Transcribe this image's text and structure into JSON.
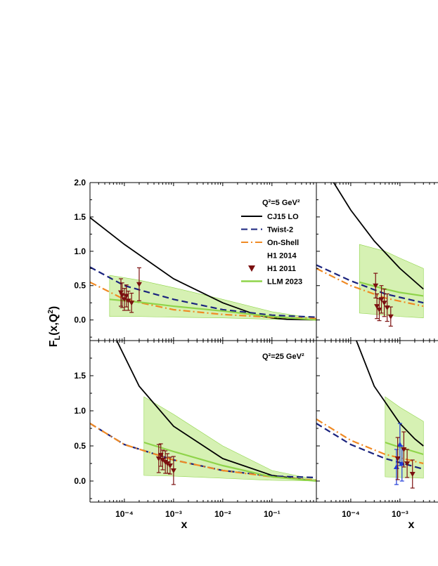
{
  "figure": {
    "ylabel_main": "F",
    "ylabel_sub": "L",
    "ylabel_args_pre": "(x,Q",
    "ylabel_args_sup": "2",
    "ylabel_args_post": ")",
    "xlabel": "x"
  },
  "chart_data": [
    {
      "type": "line",
      "panel": "top-left",
      "q2_label": "Q²=5 GeV²",
      "x_scale": "log",
      "xlim": [
        2e-05,
        0.8
      ],
      "ylim": [
        -0.3,
        2.0
      ],
      "yticks": [
        "2.0",
        "1.5",
        "1.0",
        "0.5",
        "0.0"
      ],
      "xticks": [],
      "legend": {
        "placement": "top-right",
        "entries": [
          "CJ15 LO",
          "Twist-2",
          "On-Shell",
          "H1 2014",
          "H1 2011",
          "LLM 2023"
        ]
      },
      "series": [
        {
          "name": "CJ15 LO",
          "style": "solid",
          "color": "#000000",
          "x": [
            2e-05,
            0.0001,
            0.001,
            0.01,
            0.05,
            0.1,
            0.2,
            0.8
          ],
          "y": [
            1.49,
            1.1,
            0.6,
            0.25,
            0.07,
            0.03,
            0.01,
            0.0
          ]
        },
        {
          "name": "Twist-2",
          "style": "dash",
          "color": "#1a237e",
          "x": [
            2e-05,
            0.0001,
            0.001,
            0.01,
            0.1,
            0.8
          ],
          "y": [
            0.77,
            0.5,
            0.3,
            0.15,
            0.07,
            0.04
          ]
        },
        {
          "name": "On-Shell",
          "style": "dashdot",
          "color": "#f08a24",
          "x": [
            2e-05,
            0.0001,
            0.001,
            0.01,
            0.1,
            0.8
          ],
          "y": [
            0.55,
            0.3,
            0.15,
            0.08,
            0.04,
            0.02
          ]
        },
        {
          "name": "LLM 2023",
          "style": "solid",
          "color": "#8fd44a",
          "x": [
            5e-05,
            0.0002,
            0.001,
            0.01,
            0.1,
            0.8
          ],
          "y": [
            0.3,
            0.26,
            0.2,
            0.13,
            0.05,
            0.0
          ]
        },
        {
          "name": "LLM 2023 band",
          "style": "band",
          "color": "#c8ec9a",
          "x": [
            5e-05,
            0.0002,
            0.001,
            0.01,
            0.1,
            0.8
          ],
          "y_low": [
            0.05,
            0.05,
            0.04,
            0.03,
            0.01,
            0.0
          ],
          "y_high": [
            0.65,
            0.58,
            0.47,
            0.3,
            0.12,
            0.02
          ]
        },
        {
          "name": "H1 2011",
          "style": "points",
          "color": "#7b1010",
          "x": [
            8.5e-05,
            9e-05,
            0.0001,
            0.00011,
            0.00012,
            0.00014,
            0.0002
          ],
          "y": [
            0.4,
            0.36,
            0.3,
            0.35,
            0.28,
            0.25,
            0.52
          ],
          "err": [
            0.2,
            0.18,
            0.16,
            0.16,
            0.14,
            0.14,
            0.24
          ]
        }
      ]
    },
    {
      "type": "line",
      "panel": "top-right",
      "q2_label": "",
      "x_scale": "log",
      "xlim": [
        2e-05,
        0.8
      ],
      "ylim": [
        -0.3,
        2.0
      ],
      "yticks": [],
      "xticks": [],
      "series": [
        {
          "name": "CJ15 LO",
          "style": "solid",
          "color": "#000000",
          "x": [
            4.5e-05,
            0.0001,
            0.0003,
            0.001,
            0.003
          ],
          "y": [
            2.0,
            1.6,
            1.15,
            0.75,
            0.45
          ]
        },
        {
          "name": "Twist-2",
          "style": "dash",
          "color": "#1a237e",
          "x": [
            2e-05,
            0.0001,
            0.0005,
            0.003
          ],
          "y": [
            0.8,
            0.57,
            0.38,
            0.25
          ]
        },
        {
          "name": "On-Shell",
          "style": "dashdot",
          "color": "#f08a24",
          "x": [
            2e-05,
            0.0001,
            0.0005,
            0.003
          ],
          "y": [
            0.75,
            0.5,
            0.32,
            0.2
          ]
        },
        {
          "name": "LLM 2023",
          "style": "solid",
          "color": "#8fd44a",
          "x": [
            0.00015,
            0.0005,
            0.001,
            0.003
          ],
          "y": [
            0.55,
            0.45,
            0.4,
            0.35
          ]
        },
        {
          "name": "LLM 2023 band",
          "style": "band",
          "color": "#c8ec9a",
          "x": [
            0.00015,
            0.0005,
            0.001,
            0.003
          ],
          "y_low": [
            0.1,
            0.07,
            0.05,
            0.03
          ],
          "y_high": [
            1.1,
            1.0,
            0.9,
            0.75
          ]
        },
        {
          "name": "H1 2011",
          "style": "points",
          "color": "#7b1010",
          "x": [
            0.00032,
            0.00034,
            0.00038,
            0.00042,
            0.00048,
            0.00055,
            0.00065
          ],
          "y": [
            0.5,
            0.2,
            0.15,
            0.3,
            0.25,
            0.18,
            0.05
          ],
          "err": [
            0.18,
            0.18,
            0.16,
            0.2,
            0.2,
            0.2,
            0.14
          ]
        }
      ]
    },
    {
      "type": "line",
      "panel": "bottom-left",
      "q2_label": "Q²=25 GeV²",
      "x_scale": "log",
      "xlim": [
        2e-05,
        0.8
      ],
      "ylim": [
        -0.3,
        2.0
      ],
      "yticks": [
        "1.5",
        "1.0",
        "0.5",
        "0.0"
      ],
      "xticks": [
        "10⁻⁴",
        "10⁻³",
        "10⁻²",
        "10⁻¹"
      ],
      "series": [
        {
          "name": "CJ15 LO",
          "style": "solid",
          "color": "#000000",
          "x": [
            7e-05,
            0.0002,
            0.001,
            0.01,
            0.1,
            0.8
          ],
          "y": [
            2.0,
            1.35,
            0.78,
            0.32,
            0.08,
            0.0
          ]
        },
        {
          "name": "Twist-2",
          "style": "dash",
          "color": "#1a237e",
          "x": [
            2e-05,
            0.0001,
            0.001,
            0.01,
            0.1,
            0.8
          ],
          "y": [
            0.82,
            0.52,
            0.3,
            0.15,
            0.07,
            0.05
          ]
        },
        {
          "name": "On-Shell",
          "style": "dashdot",
          "color": "#f08a24",
          "x": [
            2e-05,
            0.0001,
            0.001,
            0.01,
            0.1,
            0.8
          ],
          "y": [
            0.82,
            0.52,
            0.3,
            0.15,
            0.06,
            0.01
          ]
        },
        {
          "name": "LLM 2023",
          "style": "solid",
          "color": "#8fd44a",
          "x": [
            0.00025,
            0.001,
            0.01,
            0.1,
            0.8
          ],
          "y": [
            0.55,
            0.42,
            0.22,
            0.06,
            0.0
          ]
        },
        {
          "name": "LLM 2023 band",
          "style": "band",
          "color": "#c8ec9a",
          "x": [
            0.00025,
            0.001,
            0.01,
            0.1,
            0.8
          ],
          "y_low": [
            0.08,
            0.07,
            0.04,
            0.01,
            0.0
          ],
          "y_high": [
            1.2,
            0.95,
            0.5,
            0.15,
            0.02
          ]
        },
        {
          "name": "H1 2011",
          "style": "points",
          "color": "#7b1010",
          "x": [
            0.0005,
            0.00055,
            0.0006,
            0.00068,
            0.00075,
            0.00085,
            0.001
          ],
          "y": [
            0.32,
            0.37,
            0.3,
            0.27,
            0.25,
            0.22,
            0.15
          ],
          "err": [
            0.2,
            0.16,
            0.14,
            0.16,
            0.14,
            0.12,
            0.2
          ]
        }
      ]
    },
    {
      "type": "line",
      "panel": "bottom-right",
      "q2_label": "",
      "x_scale": "log",
      "xlim": [
        2e-05,
        0.8
      ],
      "ylim": [
        -0.3,
        2.0
      ],
      "yticks": [],
      "xticks": [
        "10⁻⁴",
        "10⁻³"
      ],
      "series": [
        {
          "name": "CJ15 LO",
          "style": "solid",
          "color": "#000000",
          "x": [
            0.00013,
            0.0003,
            0.001,
            0.002,
            0.003
          ],
          "y": [
            2.0,
            1.35,
            0.82,
            0.6,
            0.5
          ]
        },
        {
          "name": "Twist-2",
          "style": "dash",
          "color": "#1a237e",
          "x": [
            2e-05,
            0.0001,
            0.0005,
            0.003
          ],
          "y": [
            0.82,
            0.52,
            0.32,
            0.17
          ]
        },
        {
          "name": "On-Shell",
          "style": "dashdot",
          "color": "#f08a24",
          "x": [
            2e-05,
            0.0001,
            0.0005,
            0.003
          ],
          "y": [
            0.88,
            0.58,
            0.38,
            0.25
          ]
        },
        {
          "name": "LLM 2023",
          "style": "solid",
          "color": "#8fd44a",
          "x": [
            0.0005,
            0.001,
            0.003
          ],
          "y": [
            0.55,
            0.48,
            0.38
          ]
        },
        {
          "name": "LLM 2023 band",
          "style": "band",
          "color": "#c8ec9a",
          "x": [
            0.0005,
            0.001,
            0.003
          ],
          "y_low": [
            0.06,
            0.05,
            0.04
          ],
          "y_high": [
            1.2,
            1.05,
            0.85
          ]
        },
        {
          "name": "H1 2014",
          "style": "points",
          "color": "#1f3bd8",
          "x": [
            0.00085,
            0.001,
            0.0011
          ],
          "y": [
            0.2,
            0.52,
            0.25
          ],
          "err": [
            0.25,
            0.3,
            0.25
          ]
        },
        {
          "name": "H1 2011",
          "style": "points",
          "color": "#7b1010",
          "x": [
            0.0009,
            0.0012,
            0.0014,
            0.0018
          ],
          "y": [
            0.32,
            0.45,
            0.25,
            0.1
          ],
          "err": [
            0.3,
            0.25,
            0.2,
            0.2
          ]
        }
      ]
    }
  ]
}
